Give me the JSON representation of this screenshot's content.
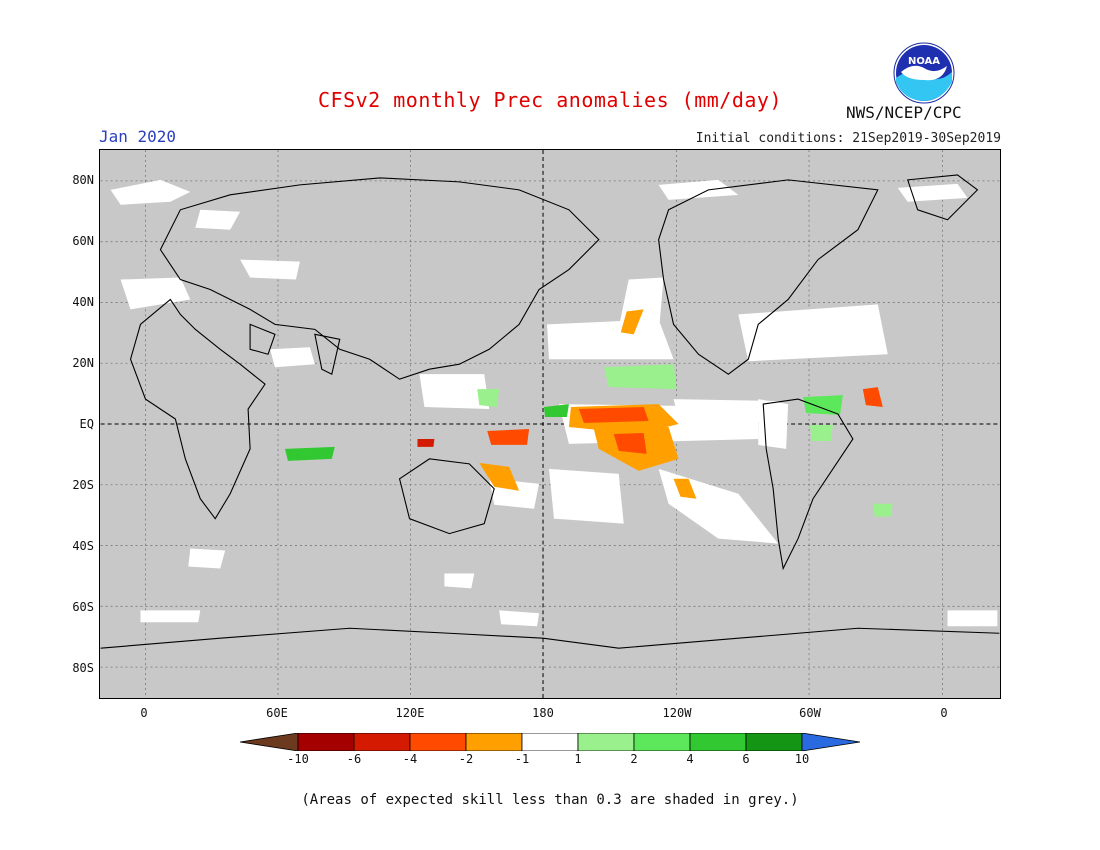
{
  "title": "CFSv2 monthly Prec anomalies (mm/day)",
  "title_color": "#e00000",
  "month": "Jan 2020",
  "month_color": "#2b3fc0",
  "initial_conditions": "Initial conditions: 21Sep2019-30Sep2019",
  "agency": "NWS/NCEP/CPC",
  "logo": "noaa-logo",
  "lat_labels": [
    "80N",
    "60N",
    "40N",
    "20N",
    "EQ",
    "20S",
    "40S",
    "60S",
    "80S"
  ],
  "lon_labels": [
    "0",
    "60E",
    "120E",
    "180",
    "120W",
    "60W",
    "0"
  ],
  "legend": {
    "ticks": [
      "-10",
      "-6",
      "-4",
      "-2",
      "-1",
      "1",
      "2",
      "4",
      "6",
      "10"
    ],
    "colors": [
      "#6b3a1f",
      "#a40000",
      "#d41a00",
      "#ff4a00",
      "#ffa000",
      "#ffffff",
      "#9af08c",
      "#5ce85a",
      "#32c832",
      "#149614",
      "#2a6ae0"
    ]
  },
  "note": "(Areas of expected skill less than 0.3 are shaded in grey.)"
}
